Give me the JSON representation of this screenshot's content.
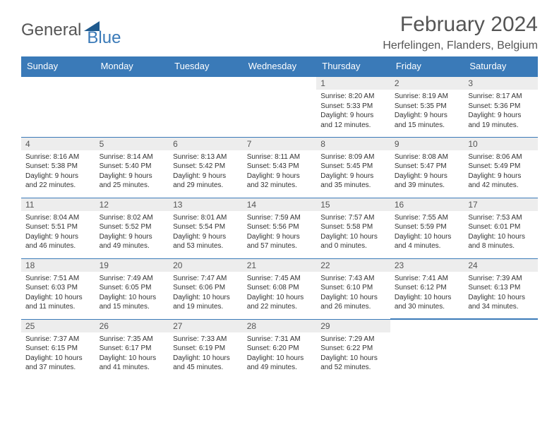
{
  "logo": {
    "text1": "General",
    "text2": "Blue",
    "shape_color": "#1f5a8e"
  },
  "header": {
    "title": "February 2024",
    "location": "Herfelingen, Flanders, Belgium"
  },
  "colors": {
    "header_bg": "#3a7ab8",
    "daynum_bg": "#ededed",
    "border": "#3a7ab8"
  },
  "day_names": [
    "Sunday",
    "Monday",
    "Tuesday",
    "Wednesday",
    "Thursday",
    "Friday",
    "Saturday"
  ],
  "weeks": [
    [
      null,
      null,
      null,
      null,
      {
        "n": "1",
        "sunrise": "8:20 AM",
        "sunset": "5:33 PM",
        "daylight": "9 hours and 12 minutes."
      },
      {
        "n": "2",
        "sunrise": "8:19 AM",
        "sunset": "5:35 PM",
        "daylight": "9 hours and 15 minutes."
      },
      {
        "n": "3",
        "sunrise": "8:17 AM",
        "sunset": "5:36 PM",
        "daylight": "9 hours and 19 minutes."
      }
    ],
    [
      {
        "n": "4",
        "sunrise": "8:16 AM",
        "sunset": "5:38 PM",
        "daylight": "9 hours and 22 minutes."
      },
      {
        "n": "5",
        "sunrise": "8:14 AM",
        "sunset": "5:40 PM",
        "daylight": "9 hours and 25 minutes."
      },
      {
        "n": "6",
        "sunrise": "8:13 AM",
        "sunset": "5:42 PM",
        "daylight": "9 hours and 29 minutes."
      },
      {
        "n": "7",
        "sunrise": "8:11 AM",
        "sunset": "5:43 PM",
        "daylight": "9 hours and 32 minutes."
      },
      {
        "n": "8",
        "sunrise": "8:09 AM",
        "sunset": "5:45 PM",
        "daylight": "9 hours and 35 minutes."
      },
      {
        "n": "9",
        "sunrise": "8:08 AM",
        "sunset": "5:47 PM",
        "daylight": "9 hours and 39 minutes."
      },
      {
        "n": "10",
        "sunrise": "8:06 AM",
        "sunset": "5:49 PM",
        "daylight": "9 hours and 42 minutes."
      }
    ],
    [
      {
        "n": "11",
        "sunrise": "8:04 AM",
        "sunset": "5:51 PM",
        "daylight": "9 hours and 46 minutes."
      },
      {
        "n": "12",
        "sunrise": "8:02 AM",
        "sunset": "5:52 PM",
        "daylight": "9 hours and 49 minutes."
      },
      {
        "n": "13",
        "sunrise": "8:01 AM",
        "sunset": "5:54 PM",
        "daylight": "9 hours and 53 minutes."
      },
      {
        "n": "14",
        "sunrise": "7:59 AM",
        "sunset": "5:56 PM",
        "daylight": "9 hours and 57 minutes."
      },
      {
        "n": "15",
        "sunrise": "7:57 AM",
        "sunset": "5:58 PM",
        "daylight": "10 hours and 0 minutes."
      },
      {
        "n": "16",
        "sunrise": "7:55 AM",
        "sunset": "5:59 PM",
        "daylight": "10 hours and 4 minutes."
      },
      {
        "n": "17",
        "sunrise": "7:53 AM",
        "sunset": "6:01 PM",
        "daylight": "10 hours and 8 minutes."
      }
    ],
    [
      {
        "n": "18",
        "sunrise": "7:51 AM",
        "sunset": "6:03 PM",
        "daylight": "10 hours and 11 minutes."
      },
      {
        "n": "19",
        "sunrise": "7:49 AM",
        "sunset": "6:05 PM",
        "daylight": "10 hours and 15 minutes."
      },
      {
        "n": "20",
        "sunrise": "7:47 AM",
        "sunset": "6:06 PM",
        "daylight": "10 hours and 19 minutes."
      },
      {
        "n": "21",
        "sunrise": "7:45 AM",
        "sunset": "6:08 PM",
        "daylight": "10 hours and 22 minutes."
      },
      {
        "n": "22",
        "sunrise": "7:43 AM",
        "sunset": "6:10 PM",
        "daylight": "10 hours and 26 minutes."
      },
      {
        "n": "23",
        "sunrise": "7:41 AM",
        "sunset": "6:12 PM",
        "daylight": "10 hours and 30 minutes."
      },
      {
        "n": "24",
        "sunrise": "7:39 AM",
        "sunset": "6:13 PM",
        "daylight": "10 hours and 34 minutes."
      }
    ],
    [
      {
        "n": "25",
        "sunrise": "7:37 AM",
        "sunset": "6:15 PM",
        "daylight": "10 hours and 37 minutes."
      },
      {
        "n": "26",
        "sunrise": "7:35 AM",
        "sunset": "6:17 PM",
        "daylight": "10 hours and 41 minutes."
      },
      {
        "n": "27",
        "sunrise": "7:33 AM",
        "sunset": "6:19 PM",
        "daylight": "10 hours and 45 minutes."
      },
      {
        "n": "28",
        "sunrise": "7:31 AM",
        "sunset": "6:20 PM",
        "daylight": "10 hours and 49 minutes."
      },
      {
        "n": "29",
        "sunrise": "7:29 AM",
        "sunset": "6:22 PM",
        "daylight": "10 hours and 52 minutes."
      },
      null,
      null
    ]
  ],
  "labels": {
    "sunrise": "Sunrise:",
    "sunset": "Sunset:",
    "daylight": "Daylight:"
  }
}
